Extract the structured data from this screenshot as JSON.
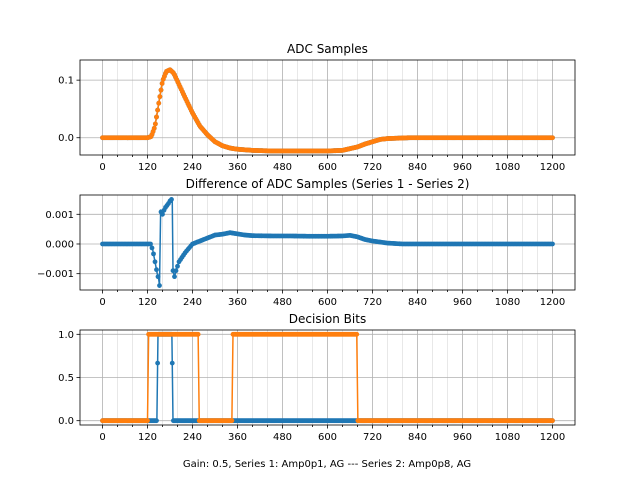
{
  "figure": {
    "xlabel": "Gain: 0.5, Series 1: Amp0p1, AG --- Series 2: Amp0p8, AG",
    "colors": {
      "series1": "#1f77b4",
      "series2": "#ff7f0e"
    }
  },
  "chart_data": [
    {
      "type": "line",
      "title": "ADC Samples",
      "xlim": [
        -60,
        1260
      ],
      "ylim": [
        -0.03,
        0.135
      ],
      "xticks": [
        0,
        120,
        240,
        360,
        480,
        600,
        720,
        840,
        960,
        1080,
        1200
      ],
      "yticks": [
        0.0,
        0.1
      ],
      "ytick_labels": [
        "0.0",
        "0.1"
      ],
      "series": [
        {
          "name": "Series 1",
          "color": "#1f77b4",
          "points": [
            [
              0,
              0
            ],
            [
              100,
              0
            ],
            [
              120,
              0
            ],
            [
              130,
              0.002
            ],
            [
              140,
              0.02
            ],
            [
              150,
              0.06
            ],
            [
              160,
              0.098
            ],
            [
              170,
              0.115
            ],
            [
              180,
              0.118
            ],
            [
              190,
              0.112
            ],
            [
              200,
              0.098
            ],
            [
              220,
              0.07
            ],
            [
              240,
              0.043
            ],
            [
              260,
              0.02
            ],
            [
              280,
              0.005
            ],
            [
              300,
              -0.007
            ],
            [
              320,
              -0.014
            ],
            [
              340,
              -0.018
            ],
            [
              360,
              -0.02
            ],
            [
              400,
              -0.022
            ],
            [
              450,
              -0.023
            ],
            [
              500,
              -0.023
            ],
            [
              550,
              -0.023
            ],
            [
              600,
              -0.023
            ],
            [
              640,
              -0.022
            ],
            [
              660,
              -0.019
            ],
            [
              680,
              -0.016
            ],
            [
              700,
              -0.011
            ],
            [
              720,
              -0.007
            ],
            [
              740,
              -0.003
            ],
            [
              760,
              -0.0015
            ],
            [
              780,
              -0.001
            ],
            [
              800,
              -0.0005
            ],
            [
              820,
              0
            ],
            [
              1200,
              0
            ]
          ]
        },
        {
          "name": "Series 2",
          "color": "#ff7f0e",
          "points": [
            [
              0,
              0
            ],
            [
              100,
              0
            ],
            [
              120,
              0
            ],
            [
              130,
              0.002
            ],
            [
              140,
              0.02
            ],
            [
              150,
              0.06
            ],
            [
              160,
              0.098
            ],
            [
              170,
              0.115
            ],
            [
              180,
              0.118
            ],
            [
              190,
              0.112
            ],
            [
              200,
              0.098
            ],
            [
              220,
              0.07
            ],
            [
              240,
              0.043
            ],
            [
              260,
              0.02
            ],
            [
              280,
              0.005
            ],
            [
              300,
              -0.007
            ],
            [
              320,
              -0.014
            ],
            [
              340,
              -0.018
            ],
            [
              360,
              -0.02
            ],
            [
              400,
              -0.022
            ],
            [
              450,
              -0.023
            ],
            [
              500,
              -0.023
            ],
            [
              550,
              -0.023
            ],
            [
              600,
              -0.023
            ],
            [
              640,
              -0.022
            ],
            [
              660,
              -0.019
            ],
            [
              680,
              -0.016
            ],
            [
              700,
              -0.011
            ],
            [
              720,
              -0.007
            ],
            [
              740,
              -0.003
            ],
            [
              760,
              -0.0015
            ],
            [
              780,
              -0.001
            ],
            [
              800,
              -0.0005
            ],
            [
              820,
              0
            ],
            [
              1200,
              0
            ]
          ]
        }
      ]
    },
    {
      "type": "line",
      "title": "Difference of ADC Samples (Series 1 - Series 2)",
      "xlim": [
        -60,
        1260
      ],
      "ylim": [
        -0.00155,
        0.00165
      ],
      "xticks": [
        0,
        120,
        240,
        360,
        480,
        600,
        720,
        840,
        960,
        1080,
        1200
      ],
      "yticks": [
        -0.001,
        0.0,
        0.001
      ],
      "ytick_labels": [
        "−0.001",
        "0.000",
        "0.001"
      ],
      "series": [
        {
          "name": "Difference",
          "color": "#1f77b4",
          "points": [
            [
              0,
              0
            ],
            [
              120,
              0
            ],
            [
              128,
              0
            ],
            [
              134,
              -0.0002
            ],
            [
              140,
              -0.0006
            ],
            [
              146,
              -0.001
            ],
            [
              150,
              -0.0012
            ],
            [
              152,
              -0.0014
            ],
            [
              155,
              0.0011
            ],
            [
              160,
              0.001
            ],
            [
              166,
              0.0012
            ],
            [
              172,
              0.0013
            ],
            [
              178,
              0.0014
            ],
            [
              182,
              0.0015
            ],
            [
              186,
              0.0015
            ],
            [
              188,
              -0.0009
            ],
            [
              192,
              -0.0011
            ],
            [
              196,
              -0.0009
            ],
            [
              204,
              -0.0006
            ],
            [
              220,
              -0.0003
            ],
            [
              240,
              0.0
            ],
            [
              260,
              0.0001
            ],
            [
              280,
              0.0002
            ],
            [
              300,
              0.0003
            ],
            [
              320,
              0.00033
            ],
            [
              340,
              0.00038
            ],
            [
              360,
              0.00034
            ],
            [
              380,
              0.0003
            ],
            [
              400,
              0.00028
            ],
            [
              450,
              0.00027
            ],
            [
              500,
              0.00027
            ],
            [
              550,
              0.00026
            ],
            [
              600,
              0.00026
            ],
            [
              640,
              0.00027
            ],
            [
              660,
              0.00029
            ],
            [
              680,
              0.00024
            ],
            [
              700,
              0.00015
            ],
            [
              720,
              0.0001
            ],
            [
              760,
              3e-05
            ],
            [
              800,
              0
            ],
            [
              1200,
              0
            ]
          ]
        }
      ]
    },
    {
      "type": "line",
      "title": "Decision Bits",
      "xlim": [
        -60,
        1260
      ],
      "ylim": [
        -0.05,
        1.05
      ],
      "xticks": [
        0,
        120,
        240,
        360,
        480,
        600,
        720,
        840,
        960,
        1080,
        1200
      ],
      "yticks": [
        0.0,
        0.5,
        1.0
      ],
      "ytick_labels": [
        "0.0",
        "0.5",
        "1.0"
      ],
      "series": [
        {
          "name": "Series 1",
          "color": "#1f77b4",
          "points": [
            [
              0,
              0
            ],
            [
              145,
              0
            ],
            [
              148,
              1
            ],
            [
              185,
              1
            ],
            [
              188,
              0
            ],
            [
              1200,
              0
            ]
          ]
        },
        {
          "name": "Series 2",
          "color": "#ff7f0e",
          "points": [
            [
              0,
              0
            ],
            [
              120,
              0
            ],
            [
              123,
              1
            ],
            [
              255,
              1
            ],
            [
              258,
              0
            ],
            [
              345,
              0
            ],
            [
              348,
              1
            ],
            [
              678,
              1
            ],
            [
              681,
              0
            ],
            [
              1200,
              0
            ]
          ]
        }
      ]
    }
  ]
}
